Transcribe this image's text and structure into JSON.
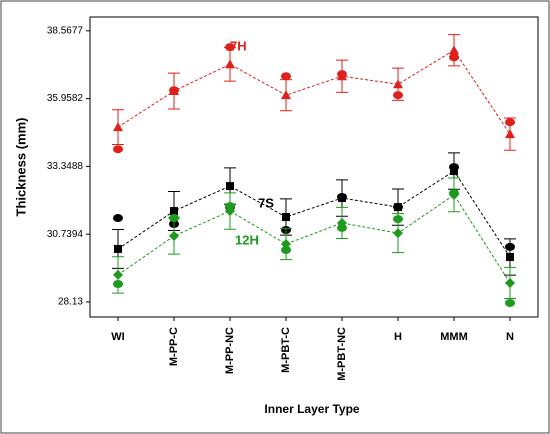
{
  "chart_data": {
    "type": "interval",
    "x_label": "Inner Layer Type",
    "y_label": "Thickness (mm)",
    "categories": [
      "WI",
      "M-PP-C",
      "M-PP-NC",
      "M-PBT-C",
      "M-PBT-NC",
      "H",
      "MMM",
      "N"
    ],
    "ylim": [
      27.55,
      39.1
    ],
    "yticks": [
      28.13,
      30.7394,
      33.3488,
      35.9582,
      38.5677
    ],
    "series": [
      {
        "name": "7H",
        "color": "#e0201b",
        "marker": "triangle",
        "values": [
          34.86,
          36.25,
          37.28,
          36.09,
          36.82,
          36.51,
          37.82,
          34.59
        ],
        "errors": [
          0.67,
          0.69,
          0.65,
          0.6,
          0.62,
          0.62,
          0.6,
          0.62
        ],
        "points": [
          34.01,
          36.28,
          37.94,
          36.82,
          36.9,
          36.09,
          37.55,
          35.05
        ]
      },
      {
        "name": "7S",
        "color": "#000000",
        "marker": "square",
        "values": [
          30.17,
          31.63,
          32.59,
          31.4,
          32.13,
          31.78,
          33.17,
          29.86
        ],
        "errors": [
          0.75,
          0.75,
          0.7,
          0.7,
          0.7,
          0.7,
          0.7,
          0.7
        ],
        "points": [
          31.36,
          31.13,
          31.78,
          30.9,
          32.17,
          31.78,
          33.32,
          30.25
        ]
      },
      {
        "name": "12H",
        "color": "#1e9a1e",
        "marker": "diamond",
        "values": [
          29.17,
          30.67,
          31.63,
          30.36,
          31.17,
          30.78,
          32.25,
          28.86
        ],
        "errors": [
          0.7,
          0.7,
          0.7,
          0.6,
          0.6,
          0.75,
          0.65,
          0.6
        ],
        "points": [
          28.82,
          31.36,
          31.82,
          30.13,
          30.98,
          31.32,
          32.32,
          28.09
        ]
      }
    ]
  }
}
